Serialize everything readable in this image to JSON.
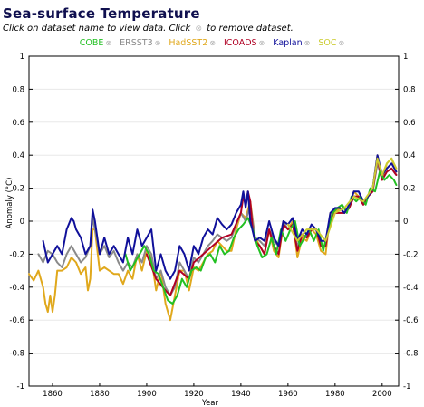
{
  "page": {
    "title": "Sea-surface Temperature",
    "instruction_before": "Click on dataset name to view data. Click",
    "remove_glyph": "⊗",
    "instruction_after": "to remove dataset."
  },
  "colors": {
    "COBE": "#22c022",
    "ERSST3": "#8a8a8a",
    "HadSST2": "#e0a81c",
    "ICOADS": "#b00024",
    "Kaplan": "#10109a",
    "SOC": "#cccc30"
  },
  "legend": [
    {
      "name": "COBE",
      "color": "#22c022"
    },
    {
      "name": "ERSST3",
      "color": "#8a8a8a"
    },
    {
      "name": "HadSST2",
      "color": "#e0a81c"
    },
    {
      "name": "ICOADS",
      "color": "#b00024"
    },
    {
      "name": "Kaplan",
      "color": "#10109a"
    },
    {
      "name": "SOC",
      "color": "#cccc30"
    }
  ],
  "chart_data": {
    "type": "line",
    "title": "Sea-surface Temperature",
    "xlabel": "Year",
    "ylabel": "Anomaly (°C)",
    "xlim": [
      1850,
      2007
    ],
    "ylim": [
      -1,
      1
    ],
    "xticks": [
      1860,
      1880,
      1900,
      1920,
      1940,
      1960,
      1980,
      2000
    ],
    "yticks": [
      -1,
      -0.8,
      -0.6,
      -0.4,
      -0.2,
      0,
      0.2,
      0.4,
      0.6,
      0.8,
      1
    ],
    "ytick_labels": [
      "-1",
      "-0.8",
      "-0.6",
      "-0.4",
      "-0.2",
      "0",
      "0.2",
      "0.4",
      "0.6",
      "0.8",
      "1"
    ],
    "grid": true,
    "series": [
      {
        "name": "HadSST2",
        "color": "#e0a81c",
        "x": [
          1850,
          1852,
          1854,
          1856,
          1857,
          1858,
          1859,
          1860,
          1861,
          1862,
          1864,
          1866,
          1868,
          1870,
          1872,
          1874,
          1875,
          1876,
          1877,
          1878,
          1880,
          1882,
          1884,
          1886,
          1888,
          1890,
          1892,
          1894,
          1896,
          1898,
          1900,
          1902,
          1904,
          1906,
          1908,
          1909,
          1910,
          1912,
          1914,
          1916,
          1918,
          1920,
          1922,
          1924,
          1926,
          1928,
          1930,
          1932,
          1934,
          1936,
          1938,
          1940,
          1942,
          1944,
          1946,
          1948,
          1950,
          1952,
          1954,
          1956,
          1958,
          1960,
          1962,
          1964,
          1966,
          1968,
          1970,
          1972,
          1974,
          1976,
          1978,
          1980,
          1982,
          1984,
          1986,
          1988,
          1990,
          1992,
          1994,
          1996,
          1998,
          2000,
          2002,
          2004,
          2006
        ],
        "y": [
          -0.32,
          -0.36,
          -0.3,
          -0.4,
          -0.5,
          -0.55,
          -0.45,
          -0.55,
          -0.45,
          -0.3,
          -0.3,
          -0.28,
          -0.22,
          -0.25,
          -0.32,
          -0.28,
          -0.42,
          -0.35,
          -0.05,
          -0.05,
          -0.3,
          -0.28,
          -0.3,
          -0.32,
          -0.32,
          -0.38,
          -0.3,
          -0.35,
          -0.2,
          -0.3,
          -0.18,
          -0.22,
          -0.42,
          -0.3,
          -0.5,
          -0.55,
          -0.6,
          -0.45,
          -0.3,
          -0.3,
          -0.42,
          -0.28,
          -0.3,
          -0.25,
          -0.2,
          -0.18,
          -0.12,
          -0.15,
          -0.18,
          -0.18,
          -0.05,
          0.05,
          0.02,
          0.12,
          -0.1,
          -0.15,
          -0.2,
          -0.05,
          -0.18,
          -0.22,
          -0.02,
          -0.05,
          0.0,
          -0.22,
          -0.1,
          -0.12,
          -0.05,
          -0.08,
          -0.18,
          -0.2,
          0.05,
          0.05,
          0.08,
          0.05,
          0.08,
          0.18,
          0.15,
          0.1,
          0.15,
          0.2,
          0.4,
          0.25,
          0.35,
          0.38,
          0.3
        ]
      },
      {
        "name": "ERSST3",
        "color": "#8a8a8a",
        "x": [
          1854,
          1856,
          1858,
          1860,
          1862,
          1864,
          1866,
          1868,
          1870,
          1872,
          1874,
          1876,
          1877,
          1878,
          1880,
          1882,
          1884,
          1886,
          1888,
          1890,
          1892,
          1894,
          1896,
          1898,
          1900,
          1902,
          1904,
          1906,
          1908,
          1910,
          1912,
          1914,
          1916,
          1918,
          1920,
          1922,
          1924,
          1926,
          1928,
          1930,
          1932,
          1934,
          1936,
          1938,
          1940,
          1942,
          1944,
          1946,
          1948,
          1950,
          1952,
          1954,
          1956,
          1958,
          1960,
          1962,
          1964,
          1966,
          1968,
          1970,
          1972,
          1974,
          1976,
          1978,
          1980,
          1982,
          1984,
          1986,
          1988,
          1990,
          1992,
          1994,
          1996,
          1998,
          2000,
          2002,
          2004,
          2006
        ],
        "y": [
          -0.2,
          -0.25,
          -0.18,
          -0.2,
          -0.25,
          -0.28,
          -0.2,
          -0.15,
          -0.2,
          -0.25,
          -0.22,
          -0.15,
          0.02,
          -0.05,
          -0.2,
          -0.15,
          -0.22,
          -0.18,
          -0.25,
          -0.3,
          -0.25,
          -0.28,
          -0.2,
          -0.25,
          -0.15,
          -0.2,
          -0.35,
          -0.3,
          -0.4,
          -0.45,
          -0.4,
          -0.25,
          -0.3,
          -0.35,
          -0.22,
          -0.25,
          -0.2,
          -0.15,
          -0.12,
          -0.08,
          -0.1,
          -0.12,
          -0.1,
          -0.02,
          0.05,
          0.0,
          0.1,
          -0.1,
          -0.12,
          -0.15,
          -0.05,
          -0.12,
          -0.15,
          0.0,
          -0.05,
          -0.02,
          -0.15,
          -0.08,
          -0.1,
          -0.05,
          -0.05,
          -0.15,
          -0.15,
          0.0,
          0.05,
          0.05,
          0.05,
          0.08,
          0.15,
          0.15,
          0.1,
          0.15,
          0.18,
          0.35,
          0.25,
          0.3,
          0.32,
          0.28
        ]
      },
      {
        "name": "ICOADS",
        "color": "#b00024",
        "x": [
          1900,
          1904,
          1908,
          1910,
          1914,
          1918,
          1920,
          1924,
          1928,
          1932,
          1936,
          1940,
          1941,
          1942,
          1943,
          1944,
          1945,
          1946,
          1948,
          1950,
          1952,
          1954,
          1956,
          1958,
          1960,
          1962,
          1964,
          1966,
          1968,
          1970,
          1972,
          1974,
          1976,
          1978,
          1980,
          1982,
          1984,
          1986,
          1988,
          1990,
          1992,
          1994,
          1996,
          1998,
          2000,
          2002,
          2004,
          2006
        ],
        "y": [
          -0.2,
          -0.35,
          -0.42,
          -0.45,
          -0.3,
          -0.35,
          -0.25,
          -0.2,
          -0.15,
          -0.1,
          -0.08,
          0.05,
          0.15,
          0.1,
          0.18,
          0.12,
          -0.05,
          -0.12,
          -0.15,
          -0.2,
          -0.05,
          -0.15,
          -0.2,
          -0.02,
          -0.05,
          -0.02,
          -0.18,
          -0.08,
          -0.1,
          -0.05,
          -0.05,
          -0.15,
          -0.15,
          0.02,
          0.05,
          0.05,
          0.05,
          0.08,
          0.15,
          0.15,
          0.1,
          0.15,
          0.18,
          0.38,
          0.25,
          0.3,
          0.32,
          0.28
        ]
      },
      {
        "name": "COBE",
        "color": "#22c022",
        "x": [
          1891,
          1893,
          1895,
          1897,
          1899,
          1901,
          1903,
          1905,
          1907,
          1909,
          1911,
          1913,
          1915,
          1917,
          1919,
          1921,
          1923,
          1925,
          1927,
          1929,
          1931,
          1933,
          1935,
          1937,
          1939,
          1941,
          1943,
          1945,
          1947,
          1949,
          1951,
          1953,
          1955,
          1957,
          1959,
          1961,
          1963,
          1965,
          1967,
          1969,
          1971,
          1973,
          1975,
          1977,
          1979,
          1981,
          1983,
          1985,
          1987,
          1989,
          1991,
          1993,
          1995,
          1997,
          1999,
          2001,
          2003,
          2005,
          2006
        ],
        "y": [
          -0.2,
          -0.3,
          -0.25,
          -0.2,
          -0.15,
          -0.2,
          -0.3,
          -0.32,
          -0.4,
          -0.48,
          -0.5,
          -0.45,
          -0.35,
          -0.4,
          -0.3,
          -0.28,
          -0.3,
          -0.22,
          -0.2,
          -0.25,
          -0.15,
          -0.2,
          -0.18,
          -0.1,
          -0.05,
          -0.02,
          0.02,
          -0.05,
          -0.15,
          -0.22,
          -0.2,
          -0.1,
          -0.2,
          -0.05,
          -0.12,
          -0.05,
          0.0,
          -0.15,
          -0.1,
          -0.05,
          -0.12,
          -0.05,
          -0.18,
          -0.05,
          0.05,
          0.08,
          0.1,
          0.05,
          0.15,
          0.12,
          0.15,
          0.1,
          0.2,
          0.18,
          0.3,
          0.25,
          0.28,
          0.25,
          0.22
        ]
      },
      {
        "name": "Kaplan",
        "color": "#10109a",
        "x": [
          1856,
          1858,
          1860,
          1862,
          1864,
          1866,
          1868,
          1869,
          1870,
          1872,
          1874,
          1876,
          1877,
          1878,
          1880,
          1882,
          1884,
          1886,
          1888,
          1890,
          1892,
          1894,
          1896,
          1898,
          1900,
          1902,
          1904,
          1906,
          1908,
          1910,
          1912,
          1914,
          1916,
          1918,
          1920,
          1922,
          1924,
          1926,
          1928,
          1930,
          1932,
          1934,
          1936,
          1938,
          1940,
          1941,
          1942,
          1943,
          1944,
          1946,
          1948,
          1950,
          1952,
          1954,
          1956,
          1958,
          1960,
          1962,
          1964,
          1966,
          1968,
          1970,
          1972,
          1974,
          1976,
          1978,
          1980,
          1982,
          1984,
          1986,
          1988,
          1990,
          1992,
          1994,
          1996,
          1998,
          2000,
          2002,
          2004,
          2006
        ],
        "y": [
          -0.12,
          -0.25,
          -0.2,
          -0.15,
          -0.2,
          -0.05,
          0.02,
          0.0,
          -0.05,
          -0.1,
          -0.2,
          -0.15,
          0.07,
          0.0,
          -0.2,
          -0.1,
          -0.2,
          -0.15,
          -0.2,
          -0.25,
          -0.1,
          -0.2,
          -0.05,
          -0.15,
          -0.1,
          -0.05,
          -0.3,
          -0.2,
          -0.3,
          -0.35,
          -0.3,
          -0.15,
          -0.2,
          -0.3,
          -0.15,
          -0.2,
          -0.1,
          -0.05,
          -0.08,
          0.02,
          -0.02,
          -0.05,
          -0.02,
          0.05,
          0.1,
          0.18,
          0.08,
          0.18,
          0.0,
          -0.12,
          -0.1,
          -0.12,
          0.0,
          -0.1,
          -0.15,
          0.0,
          -0.02,
          0.02,
          -0.12,
          -0.05,
          -0.08,
          -0.02,
          -0.05,
          -0.12,
          -0.12,
          0.05,
          0.08,
          0.08,
          0.05,
          0.1,
          0.18,
          0.18,
          0.12,
          0.15,
          0.2,
          0.4,
          0.28,
          0.32,
          0.35,
          0.3
        ]
      },
      {
        "name": "SOC",
        "color": "#cccc30",
        "x": [
          1960,
          1964,
          1968,
          1972,
          1976,
          1980,
          1984,
          1988,
          1992,
          1996,
          1998,
          2000,
          2002,
          2004,
          2006
        ],
        "y": [
          -0.02,
          -0.12,
          -0.05,
          -0.05,
          -0.12,
          0.05,
          0.08,
          0.15,
          0.12,
          0.2,
          0.38,
          0.28,
          0.35,
          0.38,
          0.32
        ]
      }
    ]
  }
}
